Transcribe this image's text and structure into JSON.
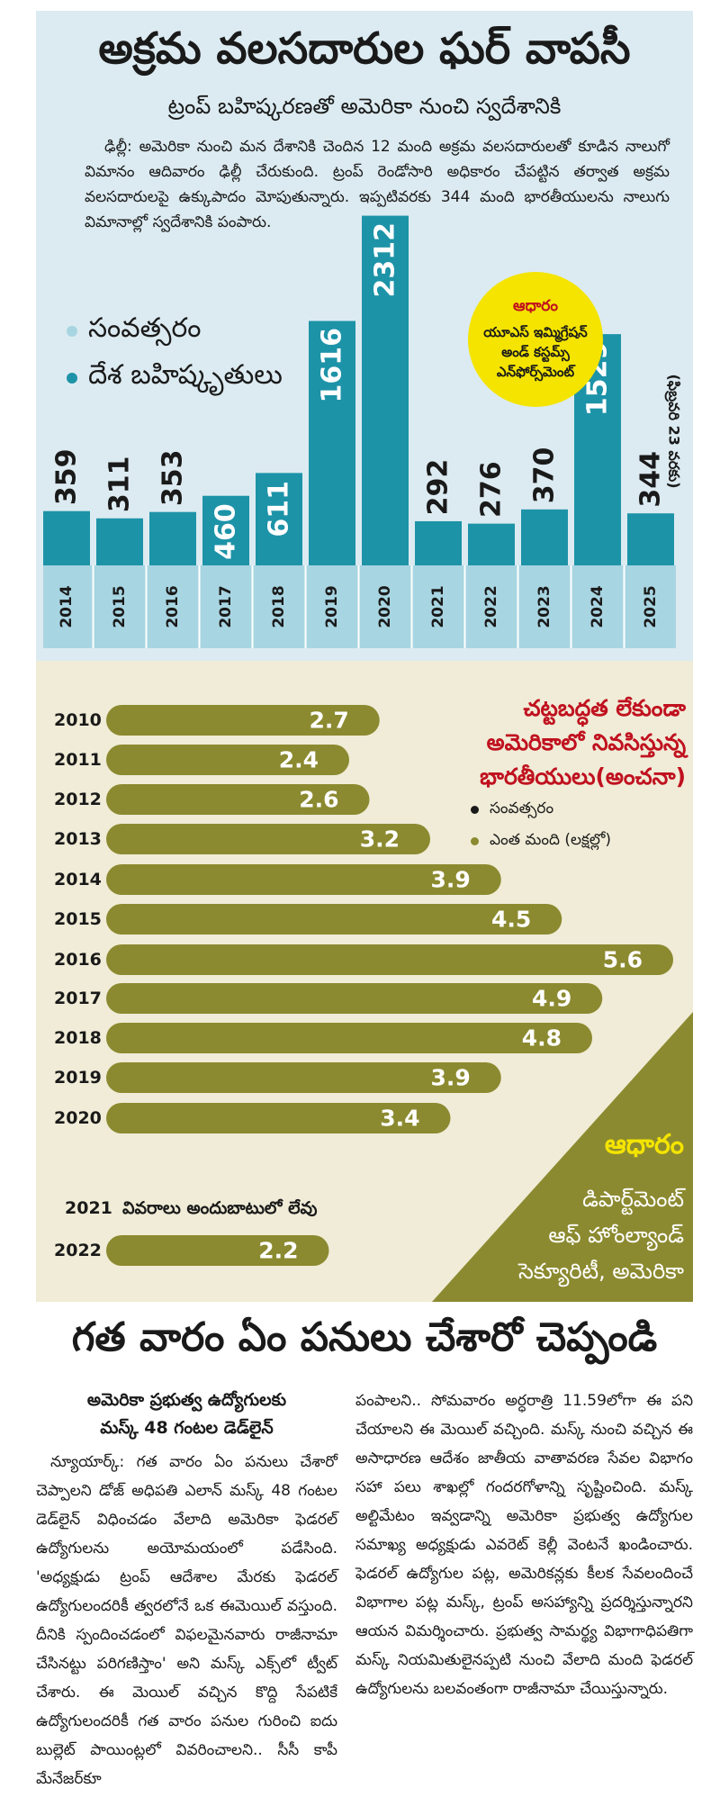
{
  "article1": {
    "headline": "అక్రమ వలసదారుల ఘర్ వాపసీ",
    "subheadline": "ట్రంప్ బహిష్కరణతో అమెరికా నుంచి స్వదేశానికి",
    "paragraph": "ఢిల్లీ: అమెరికా నుంచి మన దేశానికి చెందిన 12 మంది అక్రమ వలసదారులతో కూడిన నాలుగో విమానం ఆదివారం ఢిల్లీ చేరుకుంది. ట్రంప్ రెండోసారి అధికారం చేపట్టిన తర్వాత అక్రమ వలసదారులపై ఉక్కుపాదం మోపుతున్నారు. ఇప్పటివరకు 344 మంది భారతీయులను నాలుగు విమానాల్లో స్వదేశానికి పంపారు."
  },
  "chart1_legend": {
    "year": "సంవత్సరం",
    "deported": "దేశ బహిష్కృతులు"
  },
  "chart1_source": {
    "label": "ఆధారం",
    "lines": [
      "యూఎస్ ఇమ్మిగ్రేషన్",
      "అండ్ కస్టమ్స్",
      "ఎన్‌ఫోర్స్‌మెంట్"
    ]
  },
  "chart1_note": "(ఫిబ్రవరి 23 వరకు)",
  "chart2_title": [
    "చట్టబద్ధత లేకుండా",
    "అమెరికాలో నివసిస్తున్న",
    "భారతీయులు(అంచనా)"
  ],
  "chart2_legend": {
    "year": "సంవత్సరం",
    "count": "ఎంత మంది (లక్షల్లో)"
  },
  "chart2_source": {
    "label": "ఆధారం",
    "lines": [
      "డిపార్ట్‌మెంట్",
      "ఆఫ్ హోంల్యాండ్",
      "సెక్యూరిటీ, అమెరికా"
    ]
  },
  "chart2_missing": {
    "year": "2021",
    "note": "వివరాలు అందుబాటులో లేవు"
  },
  "chart_data": [
    {
      "type": "bar",
      "orientation": "vertical",
      "categories": [
        "2014",
        "2015",
        "2016",
        "2017",
        "2018",
        "2019",
        "2020",
        "2021",
        "2022",
        "2023",
        "2024",
        "2025"
      ],
      "values": [
        359,
        311,
        353,
        460,
        611,
        1616,
        2312,
        292,
        276,
        370,
        1529,
        344
      ],
      "labels": [
        "359",
        "311",
        "353",
        "460",
        "611",
        "1616",
        "2312",
        "292",
        "276",
        "370",
        "1529",
        "344"
      ],
      "ylim": [
        0,
        2600
      ],
      "grid": false,
      "legend_position": "left",
      "colors": {
        "bar": "#1d93a8",
        "label_text": "#1a1a1a",
        "label_text_tall": "#ffffff",
        "year_band": "#a8d5e2",
        "year_text": "#1a1a1a"
      }
    },
    {
      "type": "bar",
      "orientation": "horizontal",
      "categories": [
        "2010",
        "2011",
        "2012",
        "2013",
        "2014",
        "2015",
        "2016",
        "2017",
        "2018",
        "2019",
        "2020",
        "2022"
      ],
      "values": [
        2.7,
        2.4,
        2.6,
        3.2,
        3.9,
        4.5,
        5.6,
        4.9,
        4.8,
        3.9,
        3.4,
        2.2
      ],
      "labels": [
        "2.7",
        "2.4",
        "2.6",
        "3.2",
        "3.9",
        "4.5",
        "5.6",
        "4.9",
        "4.8",
        "3.9",
        "3.4",
        "2.2"
      ],
      "xlim": [
        0,
        5.6
      ],
      "grid": false,
      "legend_position": "right",
      "colors": {
        "bar": "#8c8a30",
        "text": "#ffffff",
        "year_text": "#1a1a1a",
        "corner": "#8c8a30"
      }
    }
  ],
  "article2": {
    "headline": "గత వారం ఏం పనులు చేశారో చెప్పండి",
    "subtitle": [
      "అమెరికా ప్రభుత్వ ఉద్యోగులకు",
      "మస్క్ 48 గంటల డెడ్‌లైన్"
    ],
    "col1": "న్యూయార్క్: గత వారం ఏం పనులు చేశారో చెప్పాలని డోజ్ అధిపతి ఎలాన్ మస్క్ 48 గంటల డెడ్‌లైన్ విధించడం వేలాది అమెరికా ఫెడరల్ ఉద్యోగులను అయోమయంలో పడేసింది. 'అధ్యక్షుడు ట్రంప్ ఆదేశాల మేరకు ఫెడరల్ ఉద్యోగులందరికీ త్వరలోనే ఒక ఈమెయిల్ వస్తుంది. దీనికి స్పందించడంలో విఫలమైనవారు రాజీనామా చేసినట్టు పరిగణిస్తాం' అని మస్క్ ఎక్స్‌లో ట్వీట్ చేశారు. ఈ మెయిల్ వచ్చిన కొద్ది సేపటికే ఉద్యోగులందరికీ గత వారం పనుల గురించి ఐదు బుల్లెట్ పాయింట్లలో వివరించాలని.. సీసీ కాపీ మేనేజర్‌కూ",
    "col2": "పంపాలని.. సోమవారం అర్ధరాత్రి 11.59లోగా ఈ పని చేయాలని ఈ మెయిల్ వచ్చింది. మస్క్ నుంచి వచ్చిన ఈ అసాధారణ ఆదేశం జాతీయ వాతావరణ సేవల విభాగం సహా పలు శాఖల్లో గందరగోళాన్ని సృష్టించింది. మస్క్ అల్టిమేటం ఇవ్వడాన్ని అమెరికా ప్రభుత్వ ఉద్యోగుల సమాఖ్య అధ్యక్షుడు ఎవరెట్ కెల్లీ వెంటనే ఖండించారు. ఫెడరల్ ఉద్యోగుల పట్ల, అమెరికన్లకు కీలక సేవలందించే విభాగాల పట్ల మస్క్, ట్రంప్ అసహ్యాన్ని ప్రదర్శిస్తున్నారని ఆయన విమర్శించారు. ప్రభుత్వ సామర్థ్య విభాగాధిపతిగా మస్క్ నియమితులైనప్పటి నుంచి వేలాది మంది ఫెడరల్ ఉద్యోగులను బలవంతంగా రాజీనామా చేయిస్తున్నారు."
  }
}
